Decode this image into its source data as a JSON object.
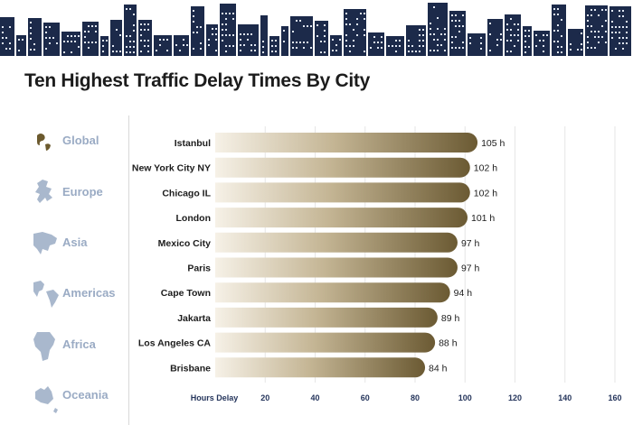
{
  "colors": {
    "accent": "#6c5a2e",
    "bar_dark": "#6b5a33",
    "bar_light": "#f6f1e7",
    "skyline": "#1c2a4a",
    "inactive_label": "#9aabc4"
  },
  "sidebar": {
    "items": [
      {
        "label": "Global",
        "icon": "globe-icon",
        "active": true
      },
      {
        "label": "Europe",
        "icon": "europe-map-icon",
        "active": false
      },
      {
        "label": "Asia",
        "icon": "asia-map-icon",
        "active": false
      },
      {
        "label": "Americas",
        "icon": "americas-map-icon",
        "active": false
      },
      {
        "label": "Africa",
        "icon": "africa-map-icon",
        "active": false
      },
      {
        "label": "Oceania",
        "icon": "oceania-map-icon",
        "active": false
      }
    ]
  },
  "chart_data": {
    "type": "bar",
    "orientation": "horizontal",
    "title": "Ten Highest Traffic Delay Times By City",
    "xlabel": "Hours Delay",
    "ylabel": "",
    "categories": [
      "Istanbul",
      "New York City NY",
      "Chicago IL",
      "London",
      "Mexico City",
      "Paris",
      "Cape Town",
      "Jakarta",
      "Los Angeles CA",
      "Brisbane"
    ],
    "values": [
      105,
      102,
      102,
      101,
      97,
      97,
      94,
      89,
      88,
      84
    ],
    "value_labels": [
      "105 h",
      "102 h",
      "102 h",
      "101 h",
      "97 h",
      "97 h",
      "94 h",
      "89 h",
      "88 h",
      "84 h"
    ],
    "xticks": [
      20,
      40,
      60,
      80,
      100,
      120,
      140,
      160
    ],
    "xlim": [
      0,
      160
    ],
    "grid": true
  }
}
